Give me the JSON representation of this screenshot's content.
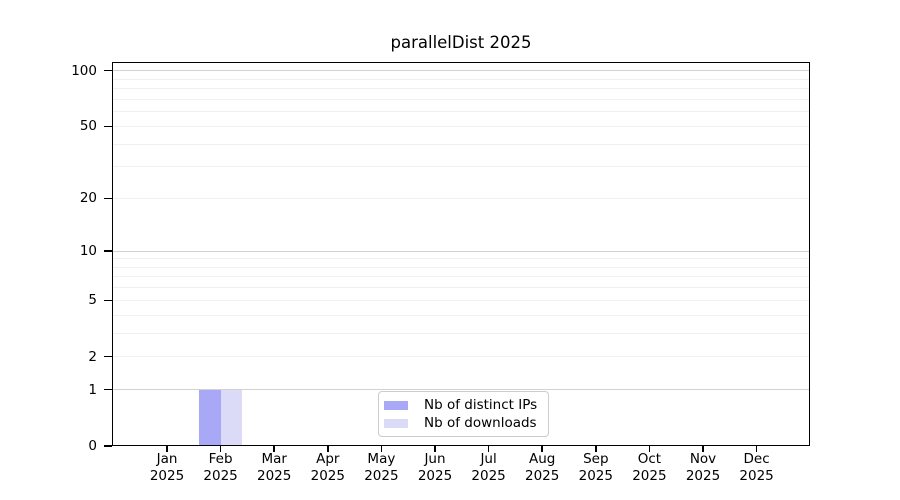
{
  "chart_data": {
    "type": "bar",
    "title": "parallelDist 2025",
    "categories": [
      {
        "month": "Jan",
        "year": "2025"
      },
      {
        "month": "Feb",
        "year": "2025"
      },
      {
        "month": "Mar",
        "year": "2025"
      },
      {
        "month": "Apr",
        "year": "2025"
      },
      {
        "month": "May",
        "year": "2025"
      },
      {
        "month": "Jun",
        "year": "2025"
      },
      {
        "month": "Jul",
        "year": "2025"
      },
      {
        "month": "Aug",
        "year": "2025"
      },
      {
        "month": "Sep",
        "year": "2025"
      },
      {
        "month": "Oct",
        "year": "2025"
      },
      {
        "month": "Nov",
        "year": "2025"
      },
      {
        "month": "Dec",
        "year": "2025"
      }
    ],
    "series": [
      {
        "name": "Nb of distinct IPs",
        "color": "#a8a8f6",
        "values": [
          0,
          1,
          0,
          0,
          0,
          0,
          0,
          0,
          0,
          0,
          0,
          0
        ]
      },
      {
        "name": "Nb of downloads",
        "color": "#dbdbf8",
        "values": [
          0,
          1,
          0,
          0,
          0,
          0,
          0,
          0,
          0,
          0,
          0,
          0
        ]
      }
    ],
    "y_axis": {
      "scale": "log1p",
      "max": 100,
      "tick_values": [
        100,
        50,
        20,
        10,
        5,
        2,
        1,
        0
      ],
      "major_gridlines": [
        100,
        10,
        1
      ],
      "minor_gridlines": [
        90,
        80,
        70,
        60,
        50,
        40,
        30,
        20,
        9,
        8,
        7,
        6,
        5,
        4,
        3,
        2
      ]
    },
    "grid": true,
    "legend_position": "bottom-center",
    "axis_color": "#000000",
    "grid_minor_color": "#f0f0f0",
    "grid_major_color": "#d2d2d2",
    "legend_border_color": "#cccccc"
  }
}
